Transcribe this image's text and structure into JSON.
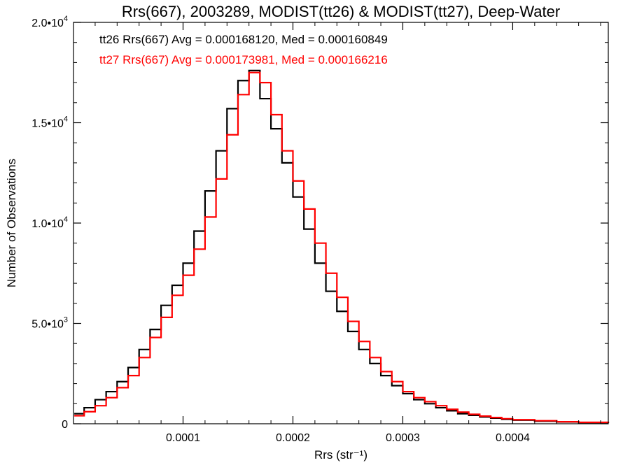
{
  "chart_data": {
    "type": "line",
    "title": "Rrs(667), 2003289, MODIST(tt26) & MODIST(tt27), Deep-Water",
    "xlabel": "Rrs (str⁻¹)",
    "ylabel": "Number of Observations",
    "xlim": [
      3e-07,
      0.000487
    ],
    "ylim": [
      0,
      20000
    ],
    "x_ticks": [
      {
        "value": 0.0001,
        "label": "0.0001"
      },
      {
        "value": 0.0002,
        "label": "0.0002"
      },
      {
        "value": 0.0003,
        "label": "0.0003"
      },
      {
        "value": 0.0004,
        "label": "0.0004"
      }
    ],
    "y_ticks": [
      {
        "value": 0,
        "mant": "0",
        "exp": ""
      },
      {
        "value": 5000,
        "mant": "5.0•1",
        "exp": ""
      },
      {
        "value": 10000,
        "mant": "1.0•1",
        "exp": ""
      },
      {
        "value": 15000,
        "mant": "1.5•1",
        "exp": ""
      },
      {
        "value": 20000,
        "mant": "2.0•1",
        "exp": ""
      }
    ],
    "y_tick_labels": [
      {
        "value": 0,
        "base": "0",
        "sup": ""
      },
      {
        "value": 5000,
        "base": "5.0•10",
        "sup": "3"
      },
      {
        "value": 10000,
        "base": "1.0•10",
        "sup": "4"
      },
      {
        "value": 15000,
        "base": "1.5•10",
        "sup": "4"
      },
      {
        "value": 20000,
        "base": "2.0•10",
        "sup": "4"
      }
    ],
    "annotations": [
      {
        "text": "tt26 Rrs(667) Avg = 0.000168120, Med = 0.000160849",
        "color": "#000000"
      },
      {
        "text": "tt27 Rrs(667) Avg = 0.000173981, Med = 0.000166216",
        "color": "#ff0000"
      }
    ],
    "series": [
      {
        "color": "#000000",
        "points": [
          [
            1e-06,
            500
          ],
          [
            1e-05,
            800
          ],
          [
            2e-05,
            1200
          ],
          [
            3e-05,
            1600
          ],
          [
            4e-05,
            2100
          ],
          [
            5e-05,
            2800
          ],
          [
            6e-05,
            3700
          ],
          [
            7e-05,
            4700
          ],
          [
            8e-05,
            5900
          ],
          [
            9e-05,
            6900
          ],
          [
            0.0001,
            8000
          ],
          [
            0.00011,
            9600
          ],
          [
            0.00012,
            11600
          ],
          [
            0.00013,
            13600
          ],
          [
            0.00014,
            15700
          ],
          [
            0.00015,
            17100
          ],
          [
            0.00016,
            17600
          ],
          [
            0.00017,
            16200
          ],
          [
            0.00018,
            14700
          ],
          [
            0.00019,
            13000
          ],
          [
            0.0002,
            11300
          ],
          [
            0.00021,
            9700
          ],
          [
            0.00022,
            8000
          ],
          [
            0.00023,
            6600
          ],
          [
            0.00024,
            5600
          ],
          [
            0.00025,
            4600
          ],
          [
            0.00026,
            3700
          ],
          [
            0.00027,
            3000
          ],
          [
            0.00028,
            2400
          ],
          [
            0.00029,
            1900
          ],
          [
            0.0003,
            1500
          ],
          [
            0.00031,
            1200
          ],
          [
            0.00032,
            1000
          ],
          [
            0.00033,
            800
          ],
          [
            0.00034,
            650
          ],
          [
            0.00035,
            500
          ],
          [
            0.00036,
            420
          ],
          [
            0.00037,
            340
          ],
          [
            0.00038,
            280
          ],
          [
            0.00039,
            220
          ],
          [
            0.0004,
            180
          ],
          [
            0.00042,
            130
          ],
          [
            0.00044,
            90
          ],
          [
            0.00046,
            60
          ],
          [
            0.000487,
            40
          ]
        ]
      },
      {
        "color": "#ff0000",
        "points": [
          [
            1e-06,
            400
          ],
          [
            1e-05,
            600
          ],
          [
            2e-05,
            900
          ],
          [
            3e-05,
            1300
          ],
          [
            4e-05,
            1800
          ],
          [
            5e-05,
            2400
          ],
          [
            6e-05,
            3300
          ],
          [
            7e-05,
            4300
          ],
          [
            8e-05,
            5300
          ],
          [
            9e-05,
            6400
          ],
          [
            0.0001,
            7400
          ],
          [
            0.00011,
            8700
          ],
          [
            0.00012,
            10300
          ],
          [
            0.00013,
            12200
          ],
          [
            0.00014,
            14400
          ],
          [
            0.00015,
            16400
          ],
          [
            0.00016,
            17500
          ],
          [
            0.00017,
            17000
          ],
          [
            0.00018,
            15400
          ],
          [
            0.00019,
            13600
          ],
          [
            0.0002,
            12100
          ],
          [
            0.00021,
            10700
          ],
          [
            0.00022,
            9000
          ],
          [
            0.00023,
            7500
          ],
          [
            0.00024,
            6300
          ],
          [
            0.00025,
            5100
          ],
          [
            0.00026,
            4100
          ],
          [
            0.00027,
            3300
          ],
          [
            0.00028,
            2600
          ],
          [
            0.00029,
            2100
          ],
          [
            0.0003,
            1600
          ],
          [
            0.00031,
            1300
          ],
          [
            0.00032,
            1100
          ],
          [
            0.00033,
            900
          ],
          [
            0.00034,
            720
          ],
          [
            0.00035,
            580
          ],
          [
            0.00036,
            470
          ],
          [
            0.00037,
            380
          ],
          [
            0.00038,
            310
          ],
          [
            0.00039,
            250
          ],
          [
            0.0004,
            200
          ],
          [
            0.00042,
            150
          ],
          [
            0.00044,
            100
          ],
          [
            0.00046,
            70
          ],
          [
            0.000487,
            50
          ]
        ]
      }
    ]
  }
}
